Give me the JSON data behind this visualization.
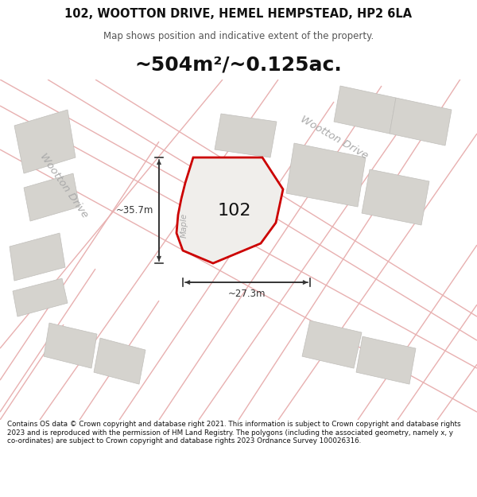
{
  "title_line1": "102, WOOTTON DRIVE, HEMEL HEMPSTEAD, HP2 6LA",
  "title_line2": "Map shows position and indicative extent of the property.",
  "area_text": "~504m²/~0.125ac.",
  "plot_label": "102",
  "dim_width": "~27.3m",
  "dim_height": "~35.7m",
  "road_label_top": "Wootton Drive",
  "road_label_left": "Wootton Drive",
  "street_label": "Maple",
  "footer_text": "Contains OS data © Crown copyright and database right 2021. This information is subject to Crown copyright and database rights 2023 and is reproduced with the permission of HM Land Registry. The polygons (including the associated geometry, namely x, y co-ordinates) are subject to Crown copyright and database rights 2023 Ordnance Survey 100026316.",
  "map_bg": "#f7f5f2",
  "road_color": "#e8b0b0",
  "plot_fill": "#f0eeeb",
  "plot_edge": "#cc0000",
  "grey_fill": "#d5d3ce",
  "grey_edge": "#c0beba",
  "white_bg": "#ffffff",
  "dim_color": "#333333",
  "text_dark": "#111111",
  "text_mid": "#555555",
  "text_road": "#aaaaaa",
  "title_fs": 10.5,
  "subtitle_fs": 8.5,
  "area_fs": 18,
  "label_fs": 16,
  "dim_fs": 8.5,
  "road_fs": 9.5,
  "footer_fs": 6.3
}
